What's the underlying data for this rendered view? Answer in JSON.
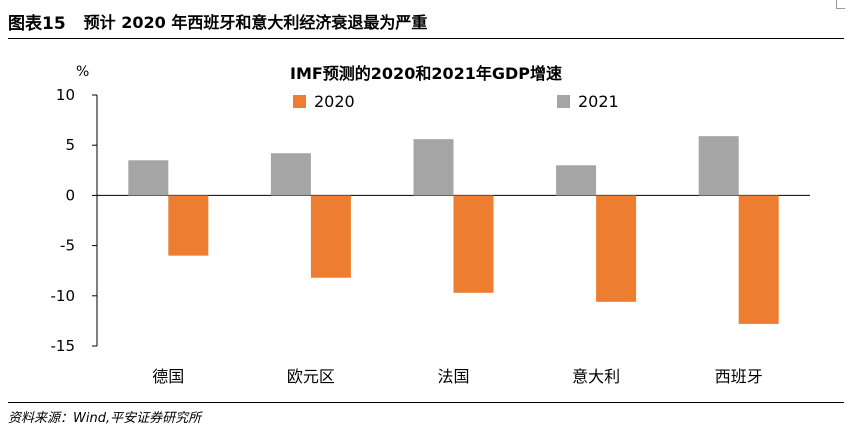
{
  "header": {
    "figure_number": "图表15",
    "figure_title": "预计 2020 年西班牙和意大利经济衰退最为严重"
  },
  "source_note": "资料来源：Wind,平安证券研究所",
  "colors": {
    "series_2020": "#ED7D31",
    "series_2021": "#A5A5A5",
    "axis": "#000000"
  },
  "chart_data": {
    "type": "bar",
    "title": "IMF预测的2020和2021年GDP增速",
    "ylabel": "%",
    "xlabel": "",
    "ylim": [
      -15,
      10
    ],
    "yticks": [
      10,
      5,
      0,
      -5,
      -10,
      -15
    ],
    "ytick_labels": [
      "10",
      "5",
      "0",
      "-5",
      "-10",
      "-15"
    ],
    "grid": false,
    "legend_position": "top",
    "categories": [
      "德国",
      "欧元区",
      "法国",
      "意大利",
      "西班牙"
    ],
    "series": [
      {
        "name": "2021",
        "values": [
          3.5,
          4.2,
          5.6,
          3.0,
          5.9
        ]
      },
      {
        "name": "2020",
        "values": [
          -6.0,
          -8.2,
          -9.7,
          -10.6,
          -12.8
        ]
      }
    ]
  }
}
